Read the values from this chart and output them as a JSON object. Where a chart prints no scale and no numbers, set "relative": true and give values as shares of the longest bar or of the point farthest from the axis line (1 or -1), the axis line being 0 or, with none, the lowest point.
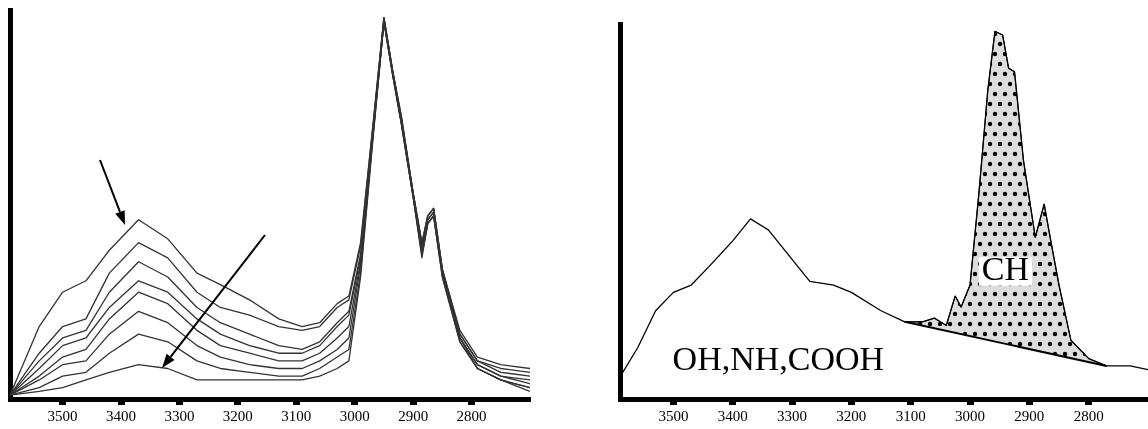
{
  "chart_data": [
    {
      "type": "line",
      "relative": true,
      "tick_labels": "x",
      "grid": false,
      "legend": false,
      "marker": "none",
      "line_style": "solid",
      "xlim": [
        3590,
        2700
      ],
      "xticks": [
        3500,
        3400,
        3300,
        3200,
        3100,
        3000,
        2900,
        2800
      ],
      "x": [
        3590,
        3540,
        3500,
        3460,
        3420,
        3370,
        3320,
        3270,
        3230,
        3180,
        3130,
        3090,
        3060,
        3030,
        3010,
        2990,
        2970,
        2950,
        2935,
        2920,
        2900,
        2885,
        2875,
        2865,
        2850,
        2820,
        2790,
        2750,
        2700
      ],
      "series": [
        {
          "color": "#333333",
          "values": [
            0.01,
            0.19,
            0.28,
            0.31,
            0.39,
            0.47,
            0.42,
            0.33,
            0.3,
            0.26,
            0.21,
            0.19,
            0.2,
            0.25,
            0.27,
            0.41,
            0.7,
            1.0,
            0.86,
            0.74,
            0.54,
            0.41,
            0.48,
            0.5,
            0.34,
            0.18,
            0.11,
            0.09,
            0.08
          ]
        },
        {
          "color": "#333333",
          "values": [
            0.01,
            0.12,
            0.19,
            0.21,
            0.33,
            0.41,
            0.37,
            0.28,
            0.24,
            0.22,
            0.19,
            0.18,
            0.19,
            0.24,
            0.26,
            0.4,
            0.7,
            1.0,
            0.86,
            0.74,
            0.54,
            0.41,
            0.48,
            0.5,
            0.34,
            0.17,
            0.1,
            0.08,
            0.07
          ]
        },
        {
          "color": "#333333",
          "values": [
            0.01,
            0.1,
            0.16,
            0.18,
            0.28,
            0.36,
            0.32,
            0.24,
            0.2,
            0.17,
            0.14,
            0.13,
            0.15,
            0.2,
            0.23,
            0.38,
            0.69,
            1.0,
            0.86,
            0.73,
            0.54,
            0.4,
            0.48,
            0.5,
            0.34,
            0.17,
            0.1,
            0.07,
            0.06
          ]
        },
        {
          "color": "#333333",
          "values": [
            0.01,
            0.08,
            0.14,
            0.16,
            0.24,
            0.31,
            0.28,
            0.21,
            0.17,
            0.14,
            0.12,
            0.12,
            0.14,
            0.19,
            0.22,
            0.37,
            0.68,
            0.99,
            0.86,
            0.73,
            0.54,
            0.4,
            0.47,
            0.49,
            0.33,
            0.16,
            0.09,
            0.06,
            0.05
          ]
        },
        {
          "color": "#333333",
          "values": [
            0.01,
            0.06,
            0.11,
            0.13,
            0.21,
            0.28,
            0.25,
            0.18,
            0.14,
            0.12,
            0.1,
            0.1,
            0.12,
            0.16,
            0.19,
            0.36,
            0.68,
            0.99,
            0.85,
            0.73,
            0.53,
            0.39,
            0.47,
            0.49,
            0.33,
            0.16,
            0.09,
            0.06,
            0.04
          ]
        },
        {
          "color": "#333333",
          "values": [
            0.01,
            0.05,
            0.09,
            0.1,
            0.17,
            0.23,
            0.2,
            0.14,
            0.11,
            0.09,
            0.08,
            0.08,
            0.1,
            0.13,
            0.16,
            0.35,
            0.67,
            0.99,
            0.85,
            0.72,
            0.53,
            0.38,
            0.46,
            0.48,
            0.33,
            0.16,
            0.08,
            0.05,
            0.03
          ]
        },
        {
          "color": "#333333",
          "values": [
            0.01,
            0.03,
            0.06,
            0.07,
            0.12,
            0.17,
            0.15,
            0.1,
            0.08,
            0.07,
            0.06,
            0.06,
            0.08,
            0.11,
            0.13,
            0.33,
            0.67,
            0.99,
            0.85,
            0.72,
            0.53,
            0.38,
            0.46,
            0.48,
            0.32,
            0.15,
            0.08,
            0.05,
            0.03
          ]
        },
        {
          "color": "#333333",
          "values": [
            0.01,
            0.02,
            0.03,
            0.05,
            0.07,
            0.09,
            0.08,
            0.05,
            0.05,
            0.05,
            0.05,
            0.05,
            0.06,
            0.08,
            0.1,
            0.32,
            0.66,
            0.99,
            0.85,
            0.72,
            0.53,
            0.37,
            0.46,
            0.48,
            0.32,
            0.15,
            0.08,
            0.05,
            0.02
          ]
        }
      ]
    },
    {
      "type": "line",
      "relative": true,
      "tick_labels": "x",
      "grid": false,
      "legend": false,
      "marker": "none",
      "line_style": "solid",
      "xlim": [
        3590,
        2700
      ],
      "xticks": [
        3500,
        3400,
        3300,
        3200,
        3100,
        3000,
        2900,
        2800
      ],
      "x": [
        3590,
        3560,
        3530,
        3500,
        3470,
        3440,
        3400,
        3370,
        3340,
        3300,
        3270,
        3230,
        3200,
        3150,
        3110,
        3080,
        3060,
        3040,
        3025,
        3015,
        3000,
        2985,
        2970,
        2958,
        2945,
        2935,
        2925,
        2910,
        2890,
        2875,
        2865,
        2850,
        2830,
        2800,
        2770,
        2730,
        2700
      ],
      "annotations": [
        "CH",
        "OH,NH,COOH"
      ],
      "series": [
        {
          "color": "#000000",
          "values": [
            0.06,
            0.14,
            0.24,
            0.29,
            0.31,
            0.36,
            0.43,
            0.49,
            0.46,
            0.38,
            0.32,
            0.31,
            0.29,
            0.24,
            0.21,
            0.21,
            0.22,
            0.2,
            0.28,
            0.25,
            0.31,
            0.56,
            0.84,
            1.0,
            0.99,
            0.9,
            0.89,
            0.65,
            0.44,
            0.53,
            0.44,
            0.31,
            0.16,
            0.11,
            0.09,
            0.09,
            0.08
          ]
        },
        {
          "type": "line",
          "color": "#000000",
          "x": [
            3110,
            2940,
            2770
          ],
          "values": [
            0.21,
            0.15,
            0.09
          ]
        },
        {
          "type": "area",
          "color": "#000000",
          "x": [
            3110,
            3080,
            3060,
            3040,
            3025,
            3015,
            3000,
            2985,
            2970,
            2958,
            2945,
            2935,
            2925,
            2910,
            2890,
            2875,
            2865,
            2850,
            2830,
            2800,
            2770
          ],
          "values": [
            0.21,
            0.21,
            0.22,
            0.2,
            0.28,
            0.25,
            0.31,
            0.56,
            0.84,
            1.0,
            0.99,
            0.9,
            0.89,
            0.65,
            0.44,
            0.53,
            0.44,
            0.31,
            0.16,
            0.11,
            0.09
          ]
        }
      ]
    }
  ]
}
